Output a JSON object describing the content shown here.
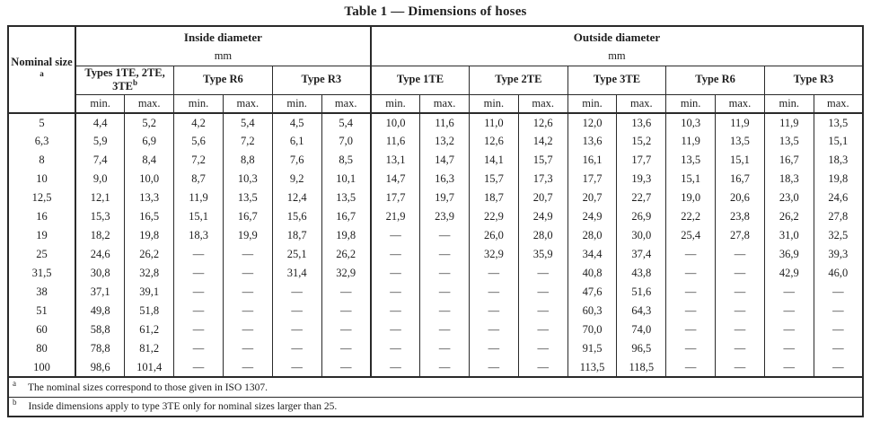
{
  "title": "Table 1 — Dimensions of hoses",
  "table": {
    "nominal_header": "Nominal size",
    "nominal_sup": "a",
    "inside": {
      "title": "Inside diameter",
      "unit": "mm"
    },
    "outside": {
      "title": "Outside diameter",
      "unit": "mm"
    },
    "inside_types": [
      {
        "label": "Types 1TE, 2TE, 3TE",
        "sup": "b"
      },
      {
        "label": "Type R6"
      },
      {
        "label": "Type R3"
      }
    ],
    "outside_types": [
      {
        "label": "Type 1TE"
      },
      {
        "label": "Type 2TE"
      },
      {
        "label": "Type 3TE"
      },
      {
        "label": "Type R6"
      },
      {
        "label": "Type R3"
      }
    ],
    "min_label": "min.",
    "max_label": "max.",
    "rows": [
      {
        "size": "5",
        "values": [
          "4,4",
          "5,2",
          "4,2",
          "5,4",
          "4,5",
          "5,4",
          "10,0",
          "11,6",
          "11,0",
          "12,6",
          "12,0",
          "13,6",
          "10,3",
          "11,9",
          "11,9",
          "13,5"
        ]
      },
      {
        "size": "6,3",
        "values": [
          "5,9",
          "6,9",
          "5,6",
          "7,2",
          "6,1",
          "7,0",
          "11,6",
          "13,2",
          "12,6",
          "14,2",
          "13,6",
          "15,2",
          "11,9",
          "13,5",
          "13,5",
          "15,1"
        ]
      },
      {
        "size": "8",
        "values": [
          "7,4",
          "8,4",
          "7,2",
          "8,8",
          "7,6",
          "8,5",
          "13,1",
          "14,7",
          "14,1",
          "15,7",
          "16,1",
          "17,7",
          "13,5",
          "15,1",
          "16,7",
          "18,3"
        ]
      },
      {
        "size": "10",
        "values": [
          "9,0",
          "10,0",
          "8,7",
          "10,3",
          "9,2",
          "10,1",
          "14,7",
          "16,3",
          "15,7",
          "17,3",
          "17,7",
          "19,3",
          "15,1",
          "16,7",
          "18,3",
          "19,8"
        ]
      },
      {
        "size": "12,5",
        "values": [
          "12,1",
          "13,3",
          "11,9",
          "13,5",
          "12,4",
          "13,5",
          "17,7",
          "19,7",
          "18,7",
          "20,7",
          "20,7",
          "22,7",
          "19,0",
          "20,6",
          "23,0",
          "24,6"
        ]
      },
      {
        "size": "16",
        "values": [
          "15,3",
          "16,5",
          "15,1",
          "16,7",
          "15,6",
          "16,7",
          "21,9",
          "23,9",
          "22,9",
          "24,9",
          "24,9",
          "26,9",
          "22,2",
          "23,8",
          "26,2",
          "27,8"
        ]
      },
      {
        "size": "19",
        "values": [
          "18,2",
          "19,8",
          "18,3",
          "19,9",
          "18,7",
          "19,8",
          "—",
          "—",
          "26,0",
          "28,0",
          "28,0",
          "30,0",
          "25,4",
          "27,8",
          "31,0",
          "32,5"
        ]
      },
      {
        "size": "25",
        "values": [
          "24,6",
          "26,2",
          "—",
          "—",
          "25,1",
          "26,2",
          "—",
          "—",
          "32,9",
          "35,9",
          "34,4",
          "37,4",
          "—",
          "—",
          "36,9",
          "39,3"
        ]
      },
      {
        "size": "31,5",
        "values": [
          "30,8",
          "32,8",
          "—",
          "—",
          "31,4",
          "32,9",
          "—",
          "—",
          "—",
          "—",
          "40,8",
          "43,8",
          "—",
          "—",
          "42,9",
          "46,0"
        ]
      },
      {
        "size": "38",
        "values": [
          "37,1",
          "39,1",
          "—",
          "—",
          "—",
          "—",
          "—",
          "—",
          "—",
          "—",
          "47,6",
          "51,6",
          "—",
          "—",
          "—",
          "—"
        ]
      },
      {
        "size": "51",
        "values": [
          "49,8",
          "51,8",
          "—",
          "—",
          "—",
          "—",
          "—",
          "—",
          "—",
          "—",
          "60,3",
          "64,3",
          "—",
          "—",
          "—",
          "—"
        ]
      },
      {
        "size": "60",
        "values": [
          "58,8",
          "61,2",
          "—",
          "—",
          "—",
          "—",
          "—",
          "—",
          "—",
          "—",
          "70,0",
          "74,0",
          "—",
          "—",
          "—",
          "—"
        ]
      },
      {
        "size": "80",
        "values": [
          "78,8",
          "81,2",
          "—",
          "—",
          "—",
          "—",
          "—",
          "—",
          "—",
          "—",
          "91,5",
          "96,5",
          "—",
          "—",
          "—",
          "—"
        ]
      },
      {
        "size": "100",
        "values": [
          "98,6",
          "101,4",
          "—",
          "—",
          "—",
          "—",
          "—",
          "—",
          "—",
          "—",
          "113,5",
          "118,5",
          "—",
          "—",
          "—",
          "—"
        ]
      }
    ],
    "footnotes": [
      {
        "marker": "a",
        "text": "The nominal sizes correspond to those given in ISO 1307."
      },
      {
        "marker": "b",
        "text": "Inside dimensions apply to type 3TE only for nominal sizes larger than 25."
      }
    ]
  }
}
